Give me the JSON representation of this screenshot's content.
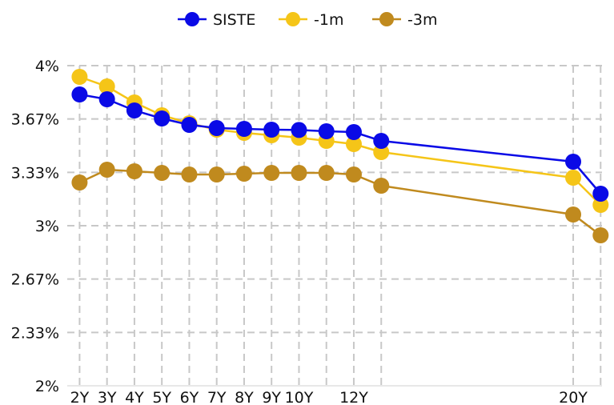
{
  "chart_data": {
    "type": "line",
    "title": "",
    "xlabel": "",
    "ylabel": "",
    "x_positions": [
      2,
      3,
      4,
      5,
      6,
      7,
      8,
      9,
      10,
      11,
      12,
      13,
      20,
      21
    ],
    "x_ticks": [
      {
        "pos": 2,
        "label": "2Y"
      },
      {
        "pos": 3,
        "label": "3Y"
      },
      {
        "pos": 4,
        "label": "4Y"
      },
      {
        "pos": 5,
        "label": "5Y"
      },
      {
        "pos": 6,
        "label": "6Y"
      },
      {
        "pos": 7,
        "label": "7Y"
      },
      {
        "pos": 8,
        "label": "8Y"
      },
      {
        "pos": 9,
        "label": "9Y"
      },
      {
        "pos": 10,
        "label": "10Y"
      },
      {
        "pos": 12,
        "label": "12Y"
      },
      {
        "pos": 20,
        "label": "20Y"
      }
    ],
    "y_ticks": [
      {
        "value": 2.0,
        "label": "2%"
      },
      {
        "value": 2.333,
        "label": "2.33%"
      },
      {
        "value": 2.667,
        "label": "2.67%"
      },
      {
        "value": 3.0,
        "label": "3%"
      },
      {
        "value": 3.333,
        "label": "3.33%"
      },
      {
        "value": 3.667,
        "label": "3.67%"
      },
      {
        "value": 4.0,
        "label": "4%"
      }
    ],
    "ylim": [
      2.0,
      4.0
    ],
    "grid": true,
    "legend_position": "top-center",
    "series": [
      {
        "name": "SISTE",
        "color": "#0a0ae6",
        "values": [
          3.82,
          3.79,
          3.72,
          3.67,
          3.63,
          3.61,
          3.605,
          3.6,
          3.598,
          3.59,
          3.585,
          3.53,
          3.4,
          3.2
        ]
      },
      {
        "name": "-1m",
        "color": "#f5c518",
        "values": [
          3.93,
          3.87,
          3.77,
          3.69,
          3.64,
          3.6,
          3.58,
          3.565,
          3.55,
          3.53,
          3.51,
          3.46,
          3.3,
          3.13
        ]
      },
      {
        "name": "-3m",
        "color": "#c08a1e",
        "values": [
          3.27,
          3.35,
          3.34,
          3.33,
          3.32,
          3.32,
          3.325,
          3.33,
          3.33,
          3.33,
          3.32,
          3.25,
          3.07,
          2.94
        ]
      }
    ]
  }
}
